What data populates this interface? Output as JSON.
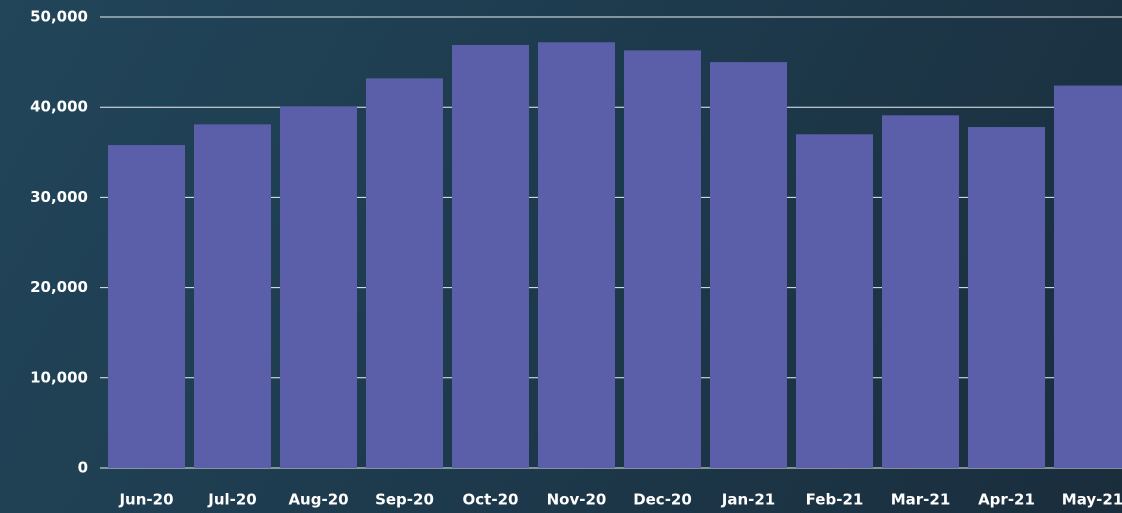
{
  "chart_data": {
    "type": "bar",
    "categories": [
      "Jun-20",
      "Jul-20",
      "Aug-20",
      "Sep-20",
      "Oct-20",
      "Nov-20",
      "Dec-20",
      "Jan-21",
      "Feb-21",
      "Mar-21",
      "Apr-21",
      "May-21"
    ],
    "values": [
      35800,
      38100,
      40100,
      43200,
      46900,
      47200,
      46300,
      45000,
      37000,
      39100,
      37800,
      42400
    ],
    "color": "#5b5ea8",
    "ylim": [
      0,
      50000
    ],
    "yticks": [
      0,
      {
        "value": 10000,
        "label": "10,000"
      },
      {
        "value": 20000,
        "label": "20,000"
      },
      {
        "value": 30000,
        "label": "30,000"
      },
      {
        "value": 40000,
        "label": "40,000"
      },
      {
        "value": 50000,
        "label": "50,000"
      }
    ],
    "grid": true
  }
}
